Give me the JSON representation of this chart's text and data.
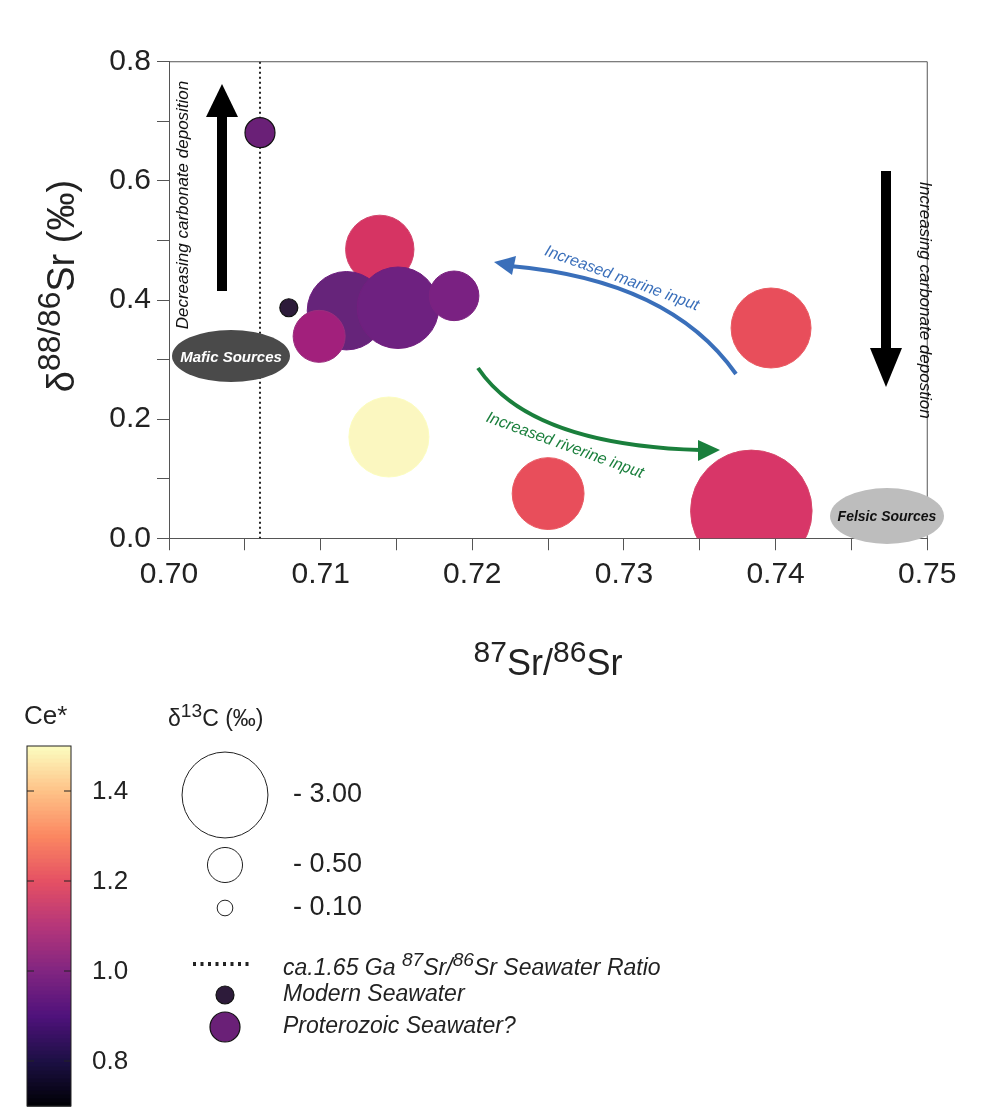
{
  "chart_data": {
    "type": "bubble",
    "xlabel": "$^{87}$Sr/$^{86}$Sr",
    "ylabel": "δ$^{88/86}$Sr (‰)",
    "clabel": "Ce*",
    "legend_title": "δ$^{13}$C (‰)",
    "xlim": [
      0.7,
      0.75
    ],
    "xticks": [
      {
        "value": 0.7,
        "label": "0.70"
      },
      {
        "value": 0.705,
        "label": null
      },
      0.71,
      {
        "value": 0.715,
        "label": null
      },
      0.72,
      {
        "value": 0.725,
        "label": null
      },
      0.73,
      {
        "value": 0.735,
        "label": null
      },
      0.74,
      {
        "value": 0.745,
        "label": null
      },
      0.75
    ],
    "ylim": [
      0,
      0.8
    ],
    "yticks": [
      {
        "value": 0,
        "label": "0.0"
      },
      {
        "value": 0.1,
        "label": null
      },
      0.2,
      {
        "value": 0.3,
        "label": null
      },
      0.4,
      {
        "value": 0.5,
        "label": null
      },
      0.6,
      {
        "value": 0.7,
        "label": null
      },
      0.8
    ],
    "clim": [
      0.7,
      1.5
    ],
    "cticks": [
      0.8,
      {
        "value": 1,
        "label": "1.0"
      },
      1.2,
      1.4
    ],
    "size_legend": [
      {
        "value": 3,
        "label": "- 3.00"
      },
      {
        "value": 0.5,
        "label": "- 0.50"
      },
      {
        "value": 0.1,
        "label": "- 0.10"
      }
    ],
    "grid": false,
    "legend": "bottom",
    "marker": "circle",
    "ref_lines": [
      {
        "axis": "x",
        "value": 0.706,
        "label": "ca.1.65 Ga $^{87}$Sr/$^{86}$Sr  Seawater Ratio",
        "line_style": "dotted",
        "color": "#222222"
      }
    ],
    "annotations": [
      "Decreasing carbonate deposition",
      "Increasing carbonate depostion",
      "Increased marine input",
      "Increased riverine input",
      "Mafic Sources",
      "Felsic Sources"
    ],
    "series": [
      {
        "type": "bubble",
        "x": [
          0.7139,
          0.7117,
          0.7151,
          0.7188,
          0.7099,
          0.7145,
          0.7397,
          0.725,
          0.7384
        ],
        "values": [
          0.485,
          0.382,
          0.387,
          0.407,
          0.339,
          0.17,
          0.353,
          0.075,
          0.046
        ],
        "sizes": [
          1.9,
          2.5,
          2.7,
          1,
          1.1,
          2.6,
          2.6,
          2.1,
          6
        ],
        "cvalues": [
          1.16,
          0.96,
          0.97,
          0.99,
          1.05,
          1.5,
          1.22,
          1.22,
          1.17
        ],
        "colors": [
          "#d63463",
          "#66247a",
          "#6e2180",
          "#7a2182",
          "#a2207c",
          "#fbf7c0",
          "#e84e5b",
          "#e84e5b",
          "#d83668"
        ]
      },
      {
        "type": "scatter",
        "name": "Modern Seawater",
        "color": "#2d1b3a",
        "x": [
          0.7079
        ],
        "values": [
          0.387
        ]
      },
      {
        "type": "scatter",
        "name": "Proterozoic Seawater?",
        "color": "#6a2077",
        "x": [
          0.706
        ],
        "values": [
          0.681
        ]
      }
    ]
  }
}
